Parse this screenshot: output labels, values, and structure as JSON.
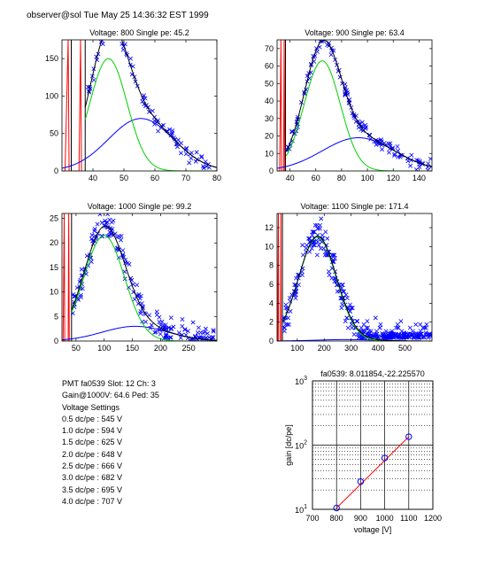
{
  "header": "observer@sol  Tue May 25 14:36:32 EST 1999",
  "info": {
    "line1": "PMT fa0539 Slot: 12 Ch: 3",
    "line2": "Gain@1000V: 64.6 Ped: 35",
    "line3": "Voltage Settings",
    "settings": [
      "0.5 dc/pe : 545 V",
      "1.0 dc/pe : 594 V",
      "1.5 dc/pe : 625 V",
      "2.0 dc/pe : 648 V",
      "2.5 dc/pe : 666 V",
      "3.0 dc/pe : 682 V",
      "3.5 dc/pe : 695 V",
      "4.0 dc/pe : 707 V"
    ]
  },
  "chart_data": [
    {
      "type": "scatter",
      "title": "Voltage: 800 Single pe: 45.2",
      "xlim": [
        30,
        80
      ],
      "ylim": [
        0,
        175
      ],
      "xticks": [
        40,
        50,
        60,
        70,
        80
      ],
      "yticks": [
        0,
        50,
        100,
        150
      ],
      "pedestal": {
        "x": [
          31,
          32,
          32.3,
          35.5,
          36,
          36.3
        ],
        "y": [
          0,
          175,
          0,
          0,
          175,
          0
        ],
        "color": "#ff0000"
      },
      "vlines": [
        {
          "x": 33,
          "color": "#000000"
        },
        {
          "x": 37.5,
          "color": "#000000"
        }
      ],
      "signal": {
        "mu": 45,
        "sigma": 6,
        "amp": 150,
        "start": 37.5,
        "color": "#00d000"
      },
      "background": {
        "mu": 55.5,
        "sigma": 10.5,
        "amp": 70,
        "start": 30,
        "color": "#0000ff"
      },
      "total_color": "#000000",
      "scatter": {
        "xmin": 37.5,
        "xmax": 78,
        "n": 90,
        "noise": 10,
        "seed": 11,
        "color": "#0000ff"
      }
    },
    {
      "type": "scatter",
      "title": "Voltage: 900 Single pe: 63.4",
      "xlim": [
        30,
        150
      ],
      "ylim": [
        0,
        75
      ],
      "xticks": [
        40,
        60,
        80,
        100,
        120,
        140
      ],
      "yticks": [
        0,
        10,
        20,
        30,
        40,
        50,
        60,
        70
      ],
      "pedestal": {
        "x": [
          32,
          33,
          33.5,
          35,
          35.5,
          36
        ],
        "y": [
          0,
          75,
          0,
          0,
          75,
          0
        ],
        "color": "#ff0000"
      },
      "vlines": [
        {
          "x": 36.5,
          "color": "#000000"
        }
      ],
      "signal": {
        "mu": 65,
        "sigma": 14,
        "amp": 63,
        "start": 37,
        "color": "#00d000"
      },
      "background": {
        "mu": 93,
        "sigma": 28,
        "amp": 19,
        "start": 30,
        "color": "#0000ff"
      },
      "total_color": "#000000",
      "scatter": {
        "xmin": 37,
        "xmax": 150,
        "n": 140,
        "noise": 4,
        "seed": 23,
        "color": "#0000ff"
      }
    },
    {
      "type": "scatter",
      "title": "Voltage: 1000 Single pe: 99.2",
      "xlim": [
        25,
        300
      ],
      "ylim": [
        0,
        26
      ],
      "xticks": [
        50,
        100,
        150,
        200,
        250
      ],
      "yticks": [
        0,
        5,
        10,
        15,
        20,
        25
      ],
      "pedestal": {
        "x": [
          27,
          29,
          30,
          36,
          37,
          38
        ],
        "y": [
          0,
          26,
          0,
          0,
          26,
          0
        ],
        "color": "#ff0000"
      },
      "vlines": [
        {
          "x": 42,
          "color": "#000000"
        }
      ],
      "signal": {
        "mu": 100,
        "sigma": 36,
        "amp": 21.5,
        "start": 42,
        "color": "#00d000"
      },
      "background": {
        "mu": 155,
        "sigma": 58,
        "amp": 3,
        "start": 25,
        "color": "#0000ff"
      },
      "total_color": "#000000",
      "scatter": {
        "xmin": 42,
        "xmax": 298,
        "n": 190,
        "noise": 2.8,
        "seed": 37,
        "color": "#0000ff"
      }
    },
    {
      "type": "scatter",
      "title": "Voltage: 1100 Single pe: 171.4",
      "xlim": [
        25,
        600
      ],
      "ylim": [
        0,
        13.5
      ],
      "xticks": [
        100,
        200,
        300,
        400,
        500
      ],
      "yticks": [
        0,
        2,
        4,
        6,
        8,
        10,
        12
      ],
      "pedestal": {
        "x": [
          27,
          30,
          31,
          38,
          39,
          40
        ],
        "y": [
          0,
          13.5,
          0,
          0,
          13.5,
          0
        ],
        "color": "#ff0000"
      },
      "vlines": [
        {
          "x": 45,
          "color": "#000000"
        }
      ],
      "signal": {
        "mu": 175,
        "sigma": 70,
        "amp": 11,
        "start": 45,
        "color": "#00d000"
      },
      "background": {
        "mu": 280,
        "sigma": 110,
        "amp": 0.15,
        "start": 25,
        "color": "#0000ff"
      },
      "total_color": "#000000",
      "scatter": {
        "xmin": 45,
        "xmax": 600,
        "n": 330,
        "noise": 1.8,
        "seed": 53,
        "quantize": 0.35,
        "color": "#0000ff"
      }
    },
    {
      "type": "line",
      "title": "fa0539: 8.011854,-22.225570",
      "xlabel": "voltage [V]",
      "ylabel": "gain [dc/pe]",
      "xlim": [
        700,
        1200
      ],
      "ylim": [
        10,
        1000
      ],
      "yscale": "log",
      "grid": true,
      "xticks": [
        700,
        800,
        900,
        1000,
        1100,
        1200
      ],
      "yticks": [
        {
          "v": 10,
          "base": "10",
          "exp": "1"
        },
        {
          "v": 100,
          "base": "10",
          "exp": "2"
        },
        {
          "v": 1000,
          "base": "10",
          "exp": "3"
        }
      ],
      "points": {
        "x": [
          800,
          900,
          1000,
          1100
        ],
        "y": [
          10.5,
          27,
          63,
          135
        ],
        "color": "#0000ff"
      },
      "fit": {
        "x": [
          800,
          1100
        ],
        "y": [
          10.5,
          135
        ],
        "color": "#ff0000"
      }
    }
  ]
}
